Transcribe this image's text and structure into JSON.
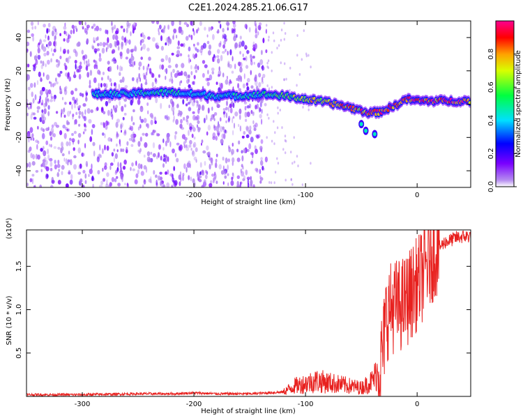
{
  "title": "C2E1.2024.285.21.06.G17",
  "colors": {
    "trace": "#e8211f",
    "frame": "#000000",
    "speckle": "#8a2be2"
  },
  "chart_data": [
    {
      "type": "heatmap",
      "xlabel": "Height of straight line (km)",
      "ylabel": "Frequency (Hz)",
      "xlim": [
        -350,
        48
      ],
      "ylim": [
        -50,
        50
      ],
      "x_ticks": [
        "-300",
        "-200",
        "-100",
        "0"
      ],
      "y_ticks": [
        "-40",
        "-20",
        "0",
        "20",
        "40"
      ],
      "colorbar": {
        "label": "Normalized spectral amplitude",
        "range": [
          0,
          1
        ],
        "ticks": [
          "0.0",
          "0.2",
          "0.4",
          "0.6",
          "0.8"
        ],
        "colormap": "rainbow (purple-blue-cyan-green-yellow-red-magenta)"
      },
      "noise_region_x": [
        -350,
        -135
      ],
      "ridge": [
        {
          "x": -290,
          "y": 6,
          "amp": 0.45
        },
        {
          "x": -260,
          "y": 6,
          "amp": 0.45
        },
        {
          "x": -240,
          "y": 7,
          "amp": 0.5
        },
        {
          "x": -220,
          "y": 7,
          "amp": 0.5
        },
        {
          "x": -200,
          "y": 6,
          "amp": 0.45
        },
        {
          "x": -180,
          "y": 5,
          "amp": 0.45
        },
        {
          "x": -160,
          "y": 5,
          "amp": 0.45
        },
        {
          "x": -140,
          "y": 6,
          "amp": 0.5
        },
        {
          "x": -120,
          "y": 5,
          "amp": 0.6
        },
        {
          "x": -100,
          "y": 3,
          "amp": 0.75
        },
        {
          "x": -80,
          "y": 1,
          "amp": 0.8
        },
        {
          "x": -60,
          "y": -2,
          "amp": 0.85
        },
        {
          "x": -45,
          "y": -5,
          "amp": 0.9
        },
        {
          "x": -35,
          "y": -5,
          "amp": 0.9
        },
        {
          "x": -20,
          "y": -1,
          "amp": 0.95
        },
        {
          "x": -10,
          "y": 3,
          "amp": 0.95
        },
        {
          "x": 0,
          "y": 2,
          "amp": 0.95
        },
        {
          "x": 20,
          "y": 2,
          "amp": 0.95
        },
        {
          "x": 48,
          "y": 2,
          "amp": 0.95
        }
      ]
    },
    {
      "type": "line",
      "xlabel": "Height of straight line (km)",
      "ylabel": "SNR (10 * v/v)",
      "scale_label": "(x10⁴)",
      "xlim": [
        -350,
        48
      ],
      "ylim": [
        0,
        1.92
      ],
      "x_ticks": [
        "-300",
        "-200",
        "-100",
        "0"
      ],
      "y_ticks": [
        "0.5",
        "1.0",
        "1.5"
      ],
      "series": [
        {
          "x": [
            -350,
            -300,
            -250,
            -220,
            -200,
            -180,
            -150,
            -120,
            -110,
            -100,
            -90,
            -80,
            -70,
            -60,
            -50,
            -40,
            -33,
            -30,
            -28,
            -25,
            -20,
            -15,
            -10,
            -5,
            0,
            5,
            10,
            15,
            20,
            25,
            30,
            35,
            40,
            48
          ],
          "y": [
            0.02,
            0.02,
            0.03,
            0.03,
            0.04,
            0.03,
            0.03,
            0.05,
            0.12,
            0.15,
            0.18,
            0.16,
            0.14,
            0.12,
            0.1,
            0.18,
            0.35,
            0.6,
            0.9,
            1.0,
            1.05,
            1.05,
            1.1,
            1.2,
            1.3,
            1.4,
            1.55,
            1.65,
            1.72,
            1.78,
            1.8,
            1.83,
            1.84,
            1.85
          ]
        }
      ]
    }
  ]
}
